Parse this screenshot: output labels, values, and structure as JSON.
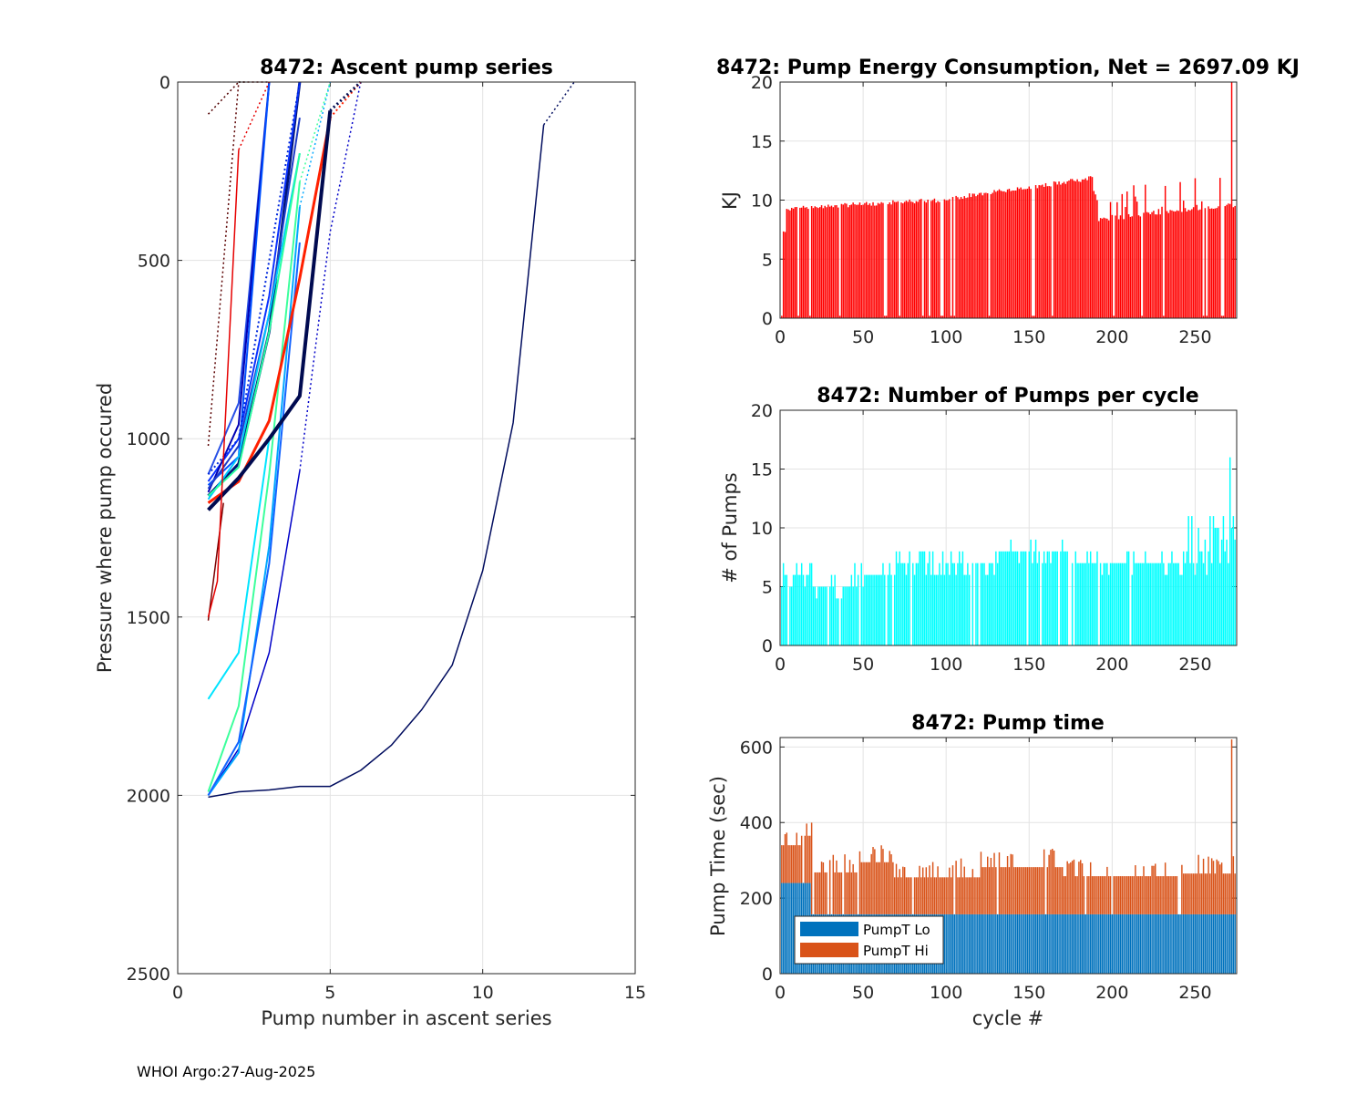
{
  "footer": "WHOI Argo:27-Aug-2025",
  "chart_data": [
    {
      "type": "line",
      "id": "ascent",
      "title": "8472: Ascent pump series",
      "xlabel": "Pump number in ascent series",
      "ylabel": "Pressure where pump occured",
      "xlim": [
        0,
        15
      ],
      "ylim": [
        0,
        2500
      ],
      "y_reversed": true,
      "xticks": [
        0,
        5,
        10,
        15
      ],
      "yticks": [
        0,
        500,
        1000,
        1500,
        2000,
        2500
      ],
      "grid": true,
      "series": [
        {
          "name": "deep-long",
          "color": "#000c5e",
          "style": "solid",
          "width": 1.5,
          "x": [
            1,
            2,
            3,
            4,
            5,
            6,
            7,
            8,
            9,
            10,
            11,
            12
          ],
          "y": [
            2005,
            1990,
            1985,
            1975,
            1975,
            1930,
            1860,
            1760,
            1635,
            1370,
            955,
            120
          ]
        },
        {
          "name": "deep-long-tail",
          "color": "#000c5e",
          "style": "dotted",
          "width": 1.5,
          "x": [
            12,
            13
          ],
          "y": [
            120,
            0
          ]
        },
        {
          "name": "deep-a",
          "color": "#0000c8",
          "style": "solid",
          "width": 1.5,
          "x": [
            1,
            2,
            3,
            4
          ],
          "y": [
            2000,
            1870,
            1600,
            1090
          ]
        },
        {
          "name": "deep-a-tail",
          "color": "#0000c8",
          "style": "dotted",
          "width": 1.5,
          "x": [
            4,
            5,
            6
          ],
          "y": [
            1090,
            420,
            0
          ]
        },
        {
          "name": "deep-b",
          "color": "#00a8ff",
          "style": "solid",
          "width": 2,
          "x": [
            1,
            2,
            3,
            4
          ],
          "y": [
            2000,
            1880,
            1300,
            350
          ]
        },
        {
          "name": "deep-b-tail",
          "color": "#00a8ff",
          "style": "dotted",
          "width": 1.5,
          "x": [
            4,
            5
          ],
          "y": [
            350,
            0
          ]
        },
        {
          "name": "deep-c",
          "color": "#3cff9c",
          "style": "solid",
          "width": 2,
          "x": [
            1,
            2,
            3,
            4
          ],
          "y": [
            1990,
            1750,
            1100,
            280
          ]
        },
        {
          "name": "deep-c-tail",
          "color": "#3cff9c",
          "style": "dotted",
          "width": 1.5,
          "x": [
            4,
            5
          ],
          "y": [
            280,
            0
          ]
        },
        {
          "name": "deep-d",
          "color": "#1464ff",
          "style": "solid",
          "width": 2,
          "x": [
            1,
            2,
            3,
            4
          ],
          "y": [
            2000,
            1850,
            1350,
            450
          ]
        },
        {
          "name": "deep-e",
          "color": "#00e4ff",
          "style": "solid",
          "width": 2,
          "x": [
            1,
            2,
            3
          ],
          "y": [
            1730,
            1600,
            1000
          ]
        },
        {
          "name": "mid-red",
          "color": "#ff2000",
          "style": "solid",
          "width": 3,
          "x": [
            1,
            2,
            3,
            4,
            5
          ],
          "y": [
            1180,
            1120,
            950,
            550,
            100
          ]
        },
        {
          "name": "mid-red-tail",
          "color": "#ff2000",
          "style": "dotted",
          "width": 2,
          "x": [
            5,
            6
          ],
          "y": [
            100,
            0
          ]
        },
        {
          "name": "mid-navy",
          "color": "#000a50",
          "style": "solid",
          "width": 4,
          "x": [
            1,
            2,
            3,
            4,
            5
          ],
          "y": [
            1200,
            1110,
            1000,
            880,
            80
          ]
        },
        {
          "name": "mid-navy-tail",
          "color": "#000a50",
          "style": "dotted",
          "width": 3,
          "x": [
            5,
            6
          ],
          "y": [
            80,
            0
          ]
        },
        {
          "name": "mid-navy2",
          "color": "#001478",
          "style": "solid",
          "width": 3,
          "x": [
            1,
            2,
            3,
            4
          ],
          "y": [
            1160,
            1070,
            700,
            0
          ]
        },
        {
          "name": "mid-blue1",
          "color": "#0a32ff",
          "style": "solid",
          "width": 2,
          "x": [
            1,
            2,
            3,
            4
          ],
          "y": [
            1120,
            1000,
            600,
            0
          ]
        },
        {
          "name": "mid-blue2",
          "color": "#2850e6",
          "style": "solid",
          "width": 2,
          "x": [
            1,
            2,
            3
          ],
          "y": [
            1100,
            900,
            0
          ]
        },
        {
          "name": "mid-blue3",
          "color": "#0000b4",
          "style": "solid",
          "width": 2,
          "x": [
            1,
            2,
            3
          ],
          "y": [
            1150,
            960,
            0
          ]
        },
        {
          "name": "mid-blue4",
          "color": "#0050ff",
          "style": "solid",
          "width": 2,
          "x": [
            1,
            2,
            3
          ],
          "y": [
            1130,
            1050,
            0
          ]
        },
        {
          "name": "mid-blue5",
          "color": "#1e3cc8",
          "style": "solid",
          "width": 2,
          "x": [
            1,
            2,
            3,
            4
          ],
          "y": [
            1140,
            1020,
            650,
            100
          ]
        },
        {
          "name": "mid-blue6",
          "color": "#0028dc",
          "style": "dotted",
          "width": 2,
          "x": [
            1,
            2,
            3,
            4
          ],
          "y": [
            1100,
            1000,
            500,
            0
          ]
        },
        {
          "name": "mid-cyan",
          "color": "#00c8ff",
          "style": "solid",
          "width": 2,
          "x": [
            1,
            2,
            3,
            4
          ],
          "y": [
            1170,
            1050,
            650,
            200
          ]
        },
        {
          "name": "mid-green",
          "color": "#28ffa0",
          "style": "solid",
          "width": 2,
          "x": [
            1,
            2,
            3,
            4
          ],
          "y": [
            1160,
            1080,
            700,
            200
          ]
        },
        {
          "name": "early-maroon",
          "color": "#780000",
          "style": "solid",
          "width": 1.5,
          "x": [
            1,
            1.5
          ],
          "y": [
            1510,
            1180
          ]
        },
        {
          "name": "early-red",
          "color": "#e60000",
          "style": "solid",
          "width": 1.5,
          "x": [
            1,
            1.3,
            2
          ],
          "y": [
            1500,
            1400,
            190
          ]
        },
        {
          "name": "early-red-tail",
          "color": "#e60000",
          "style": "dotted",
          "width": 1.5,
          "x": [
            2,
            3
          ],
          "y": [
            190,
            0
          ]
        },
        {
          "name": "early-dark1",
          "color": "#500000",
          "style": "dotted",
          "width": 1.5,
          "x": [
            1,
            2
          ],
          "y": [
            90,
            0
          ]
        },
        {
          "name": "early-dark2",
          "color": "#000000",
          "style": "dotted",
          "width": 1.5,
          "x": [
            2,
            2.2
          ],
          "y": [
            0,
            0
          ]
        },
        {
          "name": "early-dark3",
          "color": "#5a0000",
          "style": "dotted",
          "width": 1.5,
          "x": [
            1,
            2,
            3
          ],
          "y": [
            1020,
            0,
            0
          ]
        }
      ]
    },
    {
      "type": "bar",
      "id": "energy",
      "title": "8472: Pump Energy Consumption,  Net = 2697.09 KJ",
      "xlabel": "",
      "ylabel": "KJ",
      "xlim": [
        0,
        275
      ],
      "ylim": [
        0,
        20
      ],
      "xticks": [
        0,
        50,
        100,
        150,
        200,
        250
      ],
      "yticks": [
        0,
        5,
        10,
        15,
        20
      ],
      "grid": true,
      "color": "#ff0000",
      "generator": "energy_per_cycle",
      "n_cycles": 274,
      "peak": {
        "cycle": 272,
        "value": 20
      }
    },
    {
      "type": "bar",
      "id": "pumps",
      "title": "8472: Number of Pumps per cycle",
      "xlabel": "",
      "ylabel": "# of Pumps",
      "xlim": [
        0,
        275
      ],
      "ylim": [
        0,
        20
      ],
      "xticks": [
        0,
        50,
        100,
        150,
        200,
        250
      ],
      "yticks": [
        0,
        5,
        10,
        15,
        20
      ],
      "grid": true,
      "color": "#00ffff",
      "generator": "pumps_per_cycle",
      "n_cycles": 274,
      "peak": {
        "cycle": 271,
        "value": 16
      }
    },
    {
      "type": "bar",
      "id": "pumptime",
      "stacked": true,
      "title": "8472: Pump time",
      "xlabel": "cycle #",
      "ylabel": "Pump Time (sec)",
      "xlim": [
        0,
        275
      ],
      "ylim": [
        0,
        625
      ],
      "xticks": [
        0,
        50,
        100,
        150,
        200,
        250
      ],
      "yticks": [
        0,
        200,
        400,
        600
      ],
      "grid": true,
      "legend": {
        "position": "bottom-left",
        "entries": [
          {
            "label": "PumpT Lo",
            "color": "#0072bd"
          },
          {
            "label": "PumpT Hi",
            "color": "#d95319"
          }
        ]
      },
      "generator": "pump_time_per_cycle",
      "n_cycles": 274,
      "lo_levels": [
        {
          "from": 1,
          "to": 18,
          "value": 240
        },
        {
          "from": 19,
          "to": 274,
          "value": 157
        }
      ],
      "total_levels": [
        {
          "from": 1,
          "to": 12,
          "value": 340
        },
        {
          "from": 13,
          "to": 19,
          "value": 365
        },
        {
          "from": 20,
          "to": 46,
          "value": 268
        },
        {
          "from": 47,
          "to": 68,
          "value": 295
        },
        {
          "from": 69,
          "to": 120,
          "value": 255
        },
        {
          "from": 121,
          "to": 170,
          "value": 282
        },
        {
          "from": 171,
          "to": 240,
          "value": 258
        },
        {
          "from": 241,
          "to": 274,
          "value": 265
        }
      ],
      "peak": {
        "cycle": 272,
        "value": 620
      }
    }
  ]
}
